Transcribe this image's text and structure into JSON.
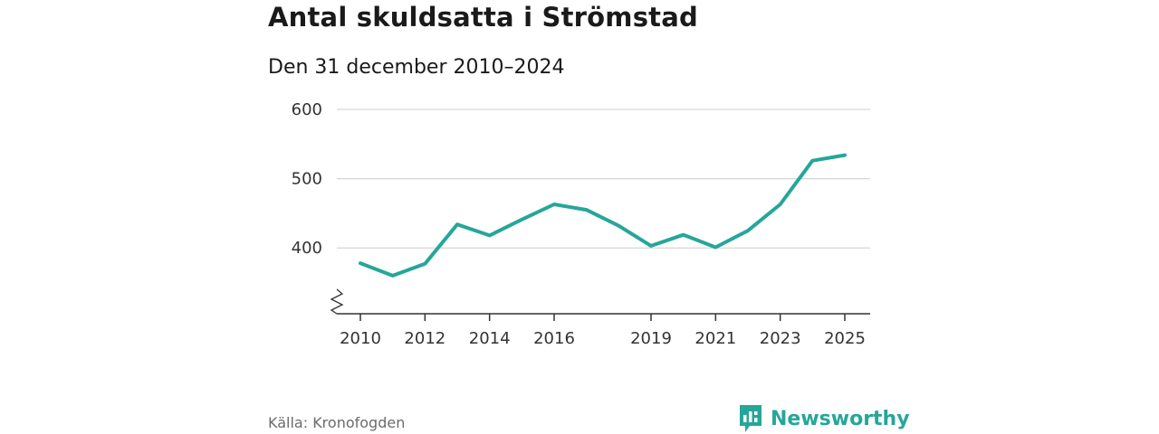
{
  "title": "Antal skuldsatta i Strömstad",
  "subtitle": "Den 31 december 2010–2024",
  "source": "Källa: Kronofogden",
  "brand": {
    "name": "Newsworthy",
    "icon": "bar-chart-speech-bubble-icon",
    "color": "#26a69a"
  },
  "chart_data": {
    "type": "line",
    "title": "Antal skuldsatta i Strömstad",
    "subtitle": "Den 31 december 2010–2024",
    "xlabel": "",
    "ylabel": "",
    "x": [
      2010,
      2011,
      2012,
      2013,
      2014,
      2015,
      2016,
      2017,
      2018,
      2019,
      2020,
      2021,
      2022,
      2023,
      2024,
      2025
    ],
    "xlim": [
      2010,
      2025
    ],
    "ylim": [
      305,
      600
    ],
    "y_axis_break": true,
    "grid": true,
    "xticks": [
      "2010",
      "2012",
      "2014",
      "2016",
      "2019",
      "2021",
      "2023",
      "2025"
    ],
    "yticks": [
      "400",
      "500",
      "600"
    ],
    "series": [
      {
        "name": "Antal skuldsatta",
        "color": "#26a69a",
        "values": [
          378,
          360,
          377,
          434,
          418,
          441,
          463,
          455,
          432,
          403,
          419,
          401,
          425,
          463,
          526,
          534
        ]
      }
    ]
  }
}
